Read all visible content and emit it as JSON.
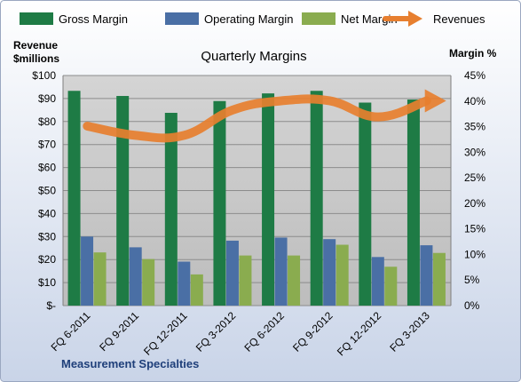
{
  "chart_data": {
    "type": "bar",
    "title": "Quarterly Margins",
    "y_left_label": [
      "Revenue",
      "$millions"
    ],
    "y_right_label": "Margin %",
    "footer": "Measurement Specialties",
    "categories": [
      "FQ 6-2011",
      "FQ 9-2011",
      "FQ 12-2011",
      "FQ 3-2012",
      "FQ 6-2012",
      "FQ 9-2012",
      "FQ 12-2012",
      "FQ 3-2013"
    ],
    "y_left_ticks": [
      "$-",
      "$10",
      "$20",
      "$30",
      "$40",
      "$50",
      "$60",
      "$70",
      "$80",
      "$90",
      "$100"
    ],
    "y_right_ticks": [
      "0%",
      "5%",
      "10%",
      "15%",
      "20%",
      "25%",
      "30%",
      "35%",
      "40%",
      "45%"
    ],
    "ylim_left": [
      0,
      100
    ],
    "ylim_right": [
      0,
      45
    ],
    "grid": true,
    "legend_position": "top",
    "series": [
      {
        "name": "Gross Margin",
        "type": "bar",
        "axis": "right",
        "color": "#1e7b45",
        "values": [
          42.0,
          41.0,
          37.7,
          40.0,
          41.5,
          42.0,
          39.7,
          40.3
        ]
      },
      {
        "name": "Operating Margin",
        "type": "bar",
        "axis": "right",
        "color": "#4a6fa5",
        "values": [
          13.5,
          11.4,
          8.6,
          12.7,
          13.3,
          13.0,
          9.5,
          11.8
        ]
      },
      {
        "name": "Net Margin",
        "type": "bar",
        "axis": "right",
        "color": "#8aac4f",
        "values": [
          10.4,
          9.1,
          6.1,
          9.8,
          9.8,
          11.9,
          7.6,
          10.3
        ]
      },
      {
        "name": "Revenues",
        "type": "line",
        "axis": "left",
        "color": "#e77f2f",
        "values": [
          78,
          74,
          74,
          85,
          89,
          89,
          82,
          89
        ]
      }
    ]
  }
}
